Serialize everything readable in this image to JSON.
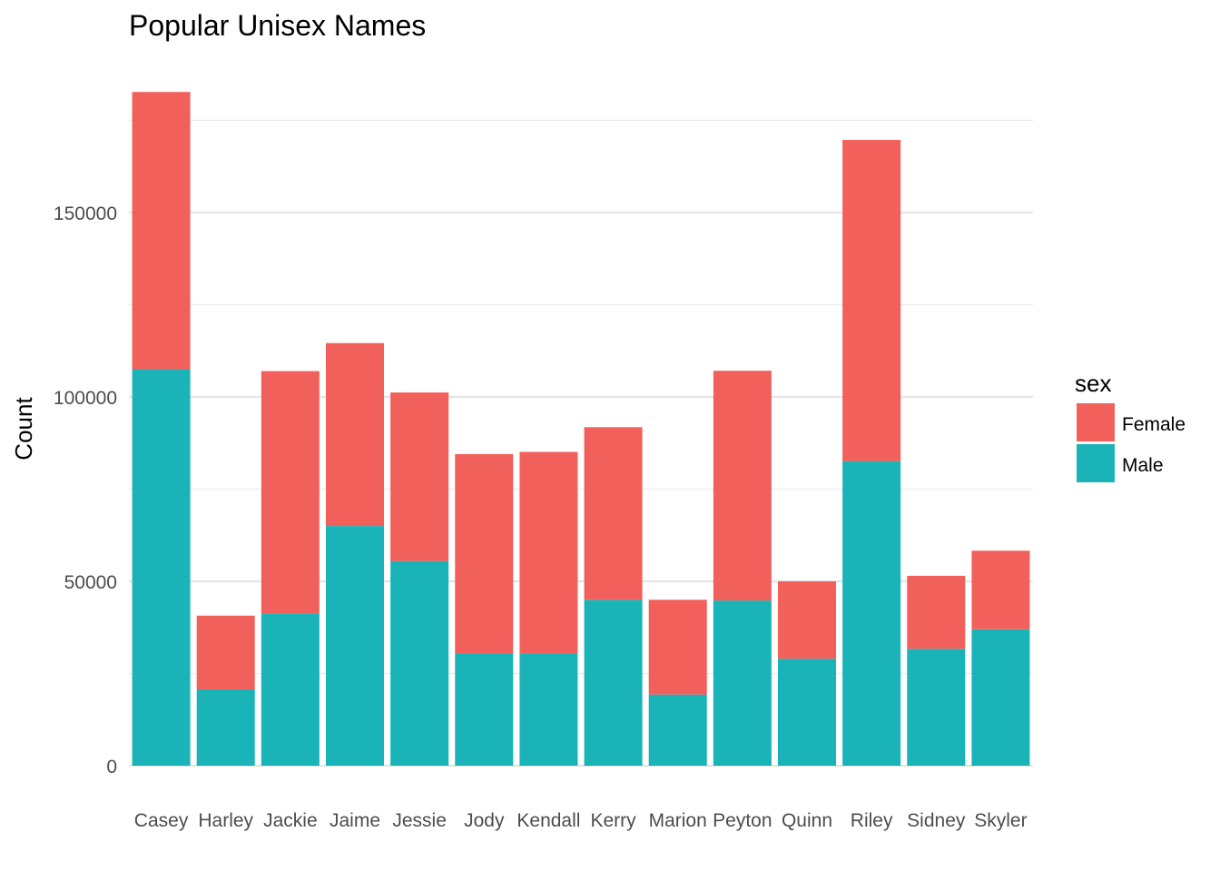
{
  "chart_data": {
    "type": "bar",
    "stacked": true,
    "title": "Popular Unisex Names",
    "xlabel": "",
    "ylabel": "Count",
    "categories": [
      "Casey",
      "Harley",
      "Jackie",
      "Jaime",
      "Jessie",
      "Jody",
      "Kendall",
      "Kerry",
      "Marion",
      "Peyton",
      "Quinn",
      "Riley",
      "Sidney",
      "Skyler"
    ],
    "series": [
      {
        "name": "Male",
        "color": "#19b3b8",
        "values": [
          107500,
          20700,
          41300,
          65000,
          55500,
          30300,
          30300,
          45000,
          19300,
          44800,
          29000,
          82600,
          31700,
          37000
        ]
      },
      {
        "name": "Female",
        "color": "#f2605c",
        "values": [
          75200,
          20000,
          65700,
          49600,
          45700,
          54200,
          54800,
          46800,
          25700,
          62300,
          21000,
          87100,
          19800,
          21300
        ]
      }
    ],
    "ylim": [
      0,
      182500
    ],
    "yticks": [
      0,
      50000,
      100000,
      150000
    ],
    "ytick_labels": [
      "0",
      "50000",
      "100000",
      "150000"
    ],
    "grid": true,
    "legend": {
      "title": "sex",
      "position": "right",
      "entries": [
        {
          "label": "Female",
          "color": "#f2605c"
        },
        {
          "label": "Male",
          "color": "#19b3b8"
        }
      ]
    }
  }
}
